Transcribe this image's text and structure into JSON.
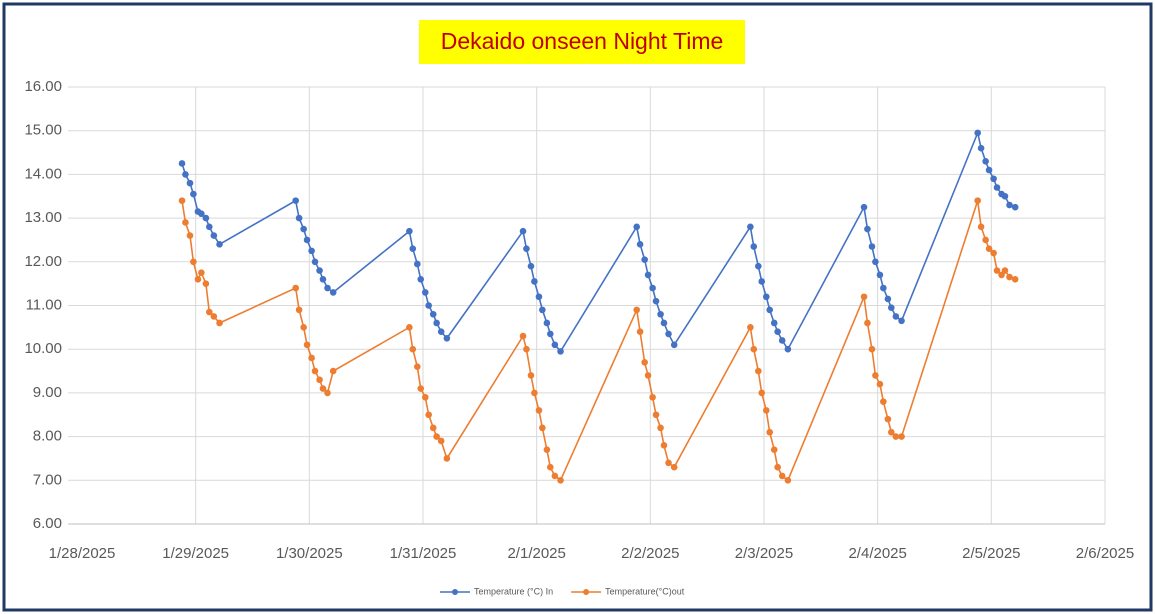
{
  "chart_data": {
    "type": "line",
    "title": "Dekaido onseen Night Time",
    "x": [
      0.88,
      0.91,
      0.95,
      0.98,
      1.02,
      1.05,
      1.09,
      1.12,
      1.16,
      1.21,
      1.88,
      1.91,
      1.95,
      1.98,
      2.02,
      2.05,
      2.09,
      2.12,
      2.16,
      2.21,
      2.88,
      2.91,
      2.95,
      2.98,
      3.02,
      3.05,
      3.09,
      3.12,
      3.16,
      3.21,
      3.88,
      3.91,
      3.95,
      3.98,
      4.02,
      4.05,
      4.09,
      4.12,
      4.16,
      4.21,
      4.88,
      4.91,
      4.95,
      4.98,
      5.02,
      5.05,
      5.09,
      5.12,
      5.16,
      5.21,
      5.88,
      5.91,
      5.95,
      5.98,
      6.02,
      6.05,
      6.09,
      6.12,
      6.16,
      6.21,
      6.88,
      6.91,
      6.95,
      6.98,
      7.02,
      7.05,
      7.09,
      7.12,
      7.16,
      7.21,
      7.88,
      7.91,
      7.95,
      7.98,
      8.02,
      8.05,
      8.09,
      8.12,
      8.16,
      8.21
    ],
    "series": [
      {
        "name": "Temperature (°C) In",
        "color": "#4472c4",
        "values": [
          14.25,
          14.0,
          13.8,
          13.55,
          13.15,
          13.1,
          13.0,
          12.8,
          12.6,
          12.4,
          13.4,
          13.0,
          12.75,
          12.5,
          12.25,
          12.0,
          11.8,
          11.6,
          11.4,
          11.3,
          12.7,
          12.3,
          11.95,
          11.6,
          11.3,
          11.0,
          10.8,
          10.6,
          10.4,
          10.25,
          12.7,
          12.3,
          11.9,
          11.55,
          11.2,
          10.9,
          10.6,
          10.35,
          10.1,
          9.95,
          12.8,
          12.4,
          12.05,
          11.7,
          11.4,
          11.1,
          10.8,
          10.6,
          10.35,
          10.1,
          12.8,
          12.35,
          11.9,
          11.55,
          11.2,
          10.9,
          10.6,
          10.4,
          10.2,
          10.0,
          13.25,
          12.75,
          12.35,
          12.0,
          11.7,
          11.4,
          11.15,
          10.95,
          10.75,
          10.65,
          14.95,
          14.6,
          14.3,
          14.1,
          13.9,
          13.7,
          13.55,
          13.5,
          13.3,
          13.25
        ]
      },
      {
        "name": "Temperature(°C)out",
        "color": "#ed7d31",
        "values": [
          13.4,
          12.9,
          12.6,
          12.0,
          11.6,
          11.75,
          11.5,
          10.85,
          10.75,
          10.6,
          11.4,
          10.9,
          10.5,
          10.1,
          9.8,
          9.5,
          9.3,
          9.1,
          9.0,
          9.5,
          10.5,
          10.0,
          9.6,
          9.1,
          8.9,
          8.5,
          8.2,
          8.0,
          7.9,
          7.5,
          10.3,
          10.0,
          9.4,
          9.0,
          8.6,
          8.2,
          7.7,
          7.3,
          7.1,
          7.0,
          10.9,
          10.4,
          9.7,
          9.4,
          8.9,
          8.5,
          8.2,
          7.8,
          7.4,
          7.3,
          10.5,
          10.0,
          9.5,
          9.0,
          8.6,
          8.1,
          7.7,
          7.3,
          7.1,
          7.0,
          11.2,
          10.6,
          10.0,
          9.4,
          9.2,
          8.8,
          8.4,
          8.1,
          8.0,
          8.0,
          13.4,
          12.8,
          12.5,
          12.3,
          12.2,
          11.8,
          11.7,
          11.8,
          11.65,
          11.6
        ]
      }
    ],
    "xlim": [
      0,
      9
    ],
    "xticks": [
      {
        "value": 0,
        "label": "1/28/2025"
      },
      {
        "value": 1,
        "label": "1/29/2025"
      },
      {
        "value": 2,
        "label": "1/30/2025"
      },
      {
        "value": 3,
        "label": "1/31/2025"
      },
      {
        "value": 4,
        "label": "2/1/2025"
      },
      {
        "value": 5,
        "label": "2/2/2025"
      },
      {
        "value": 6,
        "label": "2/3/2025"
      },
      {
        "value": 7,
        "label": "2/4/2025"
      },
      {
        "value": 8,
        "label": "2/5/2025"
      },
      {
        "value": 9,
        "label": "2/6/2025"
      }
    ],
    "ylim": [
      6,
      16
    ],
    "yticks": [
      {
        "value": 6,
        "label": "6.00"
      },
      {
        "value": 7,
        "label": "7.00"
      },
      {
        "value": 8,
        "label": "8.00"
      },
      {
        "value": 9,
        "label": "9.00"
      },
      {
        "value": 10,
        "label": "10.00"
      },
      {
        "value": 11,
        "label": "11.00"
      },
      {
        "value": 12,
        "label": "12.00"
      },
      {
        "value": 13,
        "label": "13.00"
      },
      {
        "value": 14,
        "label": "14.00"
      },
      {
        "value": 15,
        "label": "15.00"
      },
      {
        "value": 16,
        "label": "16.00"
      }
    ],
    "grid": true,
    "legend": "bottom"
  }
}
